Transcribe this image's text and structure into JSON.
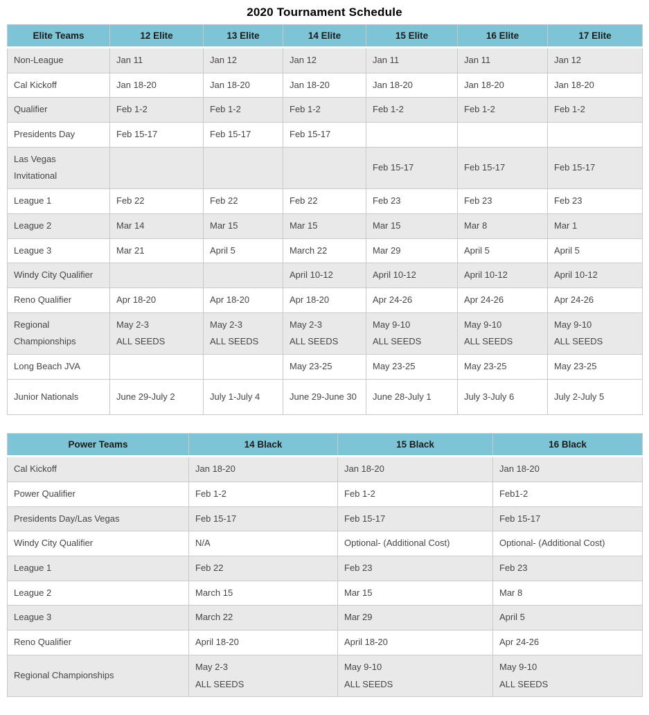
{
  "title": "2020 Tournament Schedule",
  "colors": {
    "header_bg": "#7dc5d6",
    "row_shaded": "#e9e9e9",
    "row_plain": "#ffffff",
    "border": "#c9c9c9",
    "text": "#454545",
    "header_text": "#1b1b1b"
  },
  "tables": [
    {
      "id": "elite",
      "headers": [
        "Elite Teams",
        "12 Elite",
        "13 Elite",
        "14 Elite",
        "15 Elite",
        "16 Elite",
        "17 Elite"
      ],
      "rows": [
        {
          "label": "Non-League",
          "shaded": true,
          "cells": [
            "Jan 11",
            "Jan 12",
            "Jan 12",
            "Jan 11",
            "Jan 11",
            "Jan 12"
          ]
        },
        {
          "label": "Cal Kickoff",
          "shaded": false,
          "cells": [
            "Jan 18-20",
            "Jan 18-20",
            "Jan 18-20",
            "Jan 18-20",
            "Jan 18-20",
            "Jan 18-20"
          ]
        },
        {
          "label": "Qualifier",
          "shaded": true,
          "cells": [
            "Feb 1-2",
            "Feb 1-2",
            "Feb 1-2",
            "Feb 1-2",
            "Feb 1-2",
            "Feb 1-2"
          ]
        },
        {
          "label": "Presidents Day",
          "shaded": false,
          "cells": [
            "Feb 15-17",
            "Feb 15-17",
            "Feb 15-17",
            "",
            "",
            ""
          ]
        },
        {
          "label": "Las Vegas\nInvitational",
          "shaded": true,
          "cells": [
            "",
            "",
            "",
            "Feb 15-17",
            "Feb 15-17",
            "Feb 15-17"
          ]
        },
        {
          "label": "League 1",
          "shaded": false,
          "cells": [
            "Feb 22",
            "Feb 22",
            "Feb 22",
            "Feb 23",
            "Feb 23",
            "Feb 23"
          ]
        },
        {
          "label": "League 2",
          "shaded": true,
          "cells": [
            "Mar 14",
            "Mar 15",
            "Mar 15",
            "Mar 15",
            "Mar 8",
            "Mar 1"
          ]
        },
        {
          "label": "League 3",
          "shaded": false,
          "cells": [
            "Mar 21",
            "April 5",
            "March 22",
            "Mar 29",
            "April 5",
            "April 5"
          ]
        },
        {
          "label": "Windy City Qualifier",
          "shaded": true,
          "cells": [
            "",
            "",
            "April 10-12",
            "April 10-12",
            "April 10-12",
            "April 10-12"
          ]
        },
        {
          "label": "Reno Qualifier",
          "shaded": false,
          "cells": [
            "Apr 18-20",
            "Apr 18-20",
            "Apr 18-20",
            "Apr 24-26",
            "Apr 24-26",
            "Apr 24-26"
          ]
        },
        {
          "label": "Regional\nChampionships",
          "shaded": true,
          "cells": [
            "May 2-3\nALL SEEDS",
            "May 2-3\nALL SEEDS",
            "May 2-3\nALL SEEDS",
            "May 9-10\nALL SEEDS",
            "May 9-10\nALL SEEDS",
            "May 9-10\nALL SEEDS"
          ]
        },
        {
          "label": "Long Beach JVA",
          "shaded": false,
          "cells": [
            "",
            "",
            "May 23-25",
            "May 23-25",
            "May 23-25",
            "May 23-25"
          ]
        },
        {
          "label": "Junior Nationals",
          "shaded": false,
          "cells": [
            "June 29-July 2",
            "July 1-July 4",
            "June 29-June 30",
            "June 28-July 1",
            "July 3-July 6",
            "July 2-July 5"
          ]
        }
      ]
    },
    {
      "id": "power",
      "headers": [
        "Power Teams",
        "14 Black",
        "15 Black",
        "16 Black"
      ],
      "rows": [
        {
          "label": "Cal Kickoff",
          "shaded": true,
          "cells": [
            "Jan 18-20",
            "Jan 18-20",
            "Jan 18-20"
          ]
        },
        {
          "label": "Power Qualifier",
          "shaded": false,
          "cells": [
            "Feb 1-2",
            "Feb 1-2",
            "Feb1-2"
          ]
        },
        {
          "label": "Presidents Day/Las Vegas",
          "shaded": true,
          "cells": [
            "Feb 15-17",
            "Feb 15-17",
            "Feb 15-17"
          ]
        },
        {
          "label": "Windy City Qualifier",
          "shaded": false,
          "cells": [
            "N/A",
            "Optional- (Additional Cost)",
            "Optional- (Additional Cost)"
          ]
        },
        {
          "label": "League 1",
          "shaded": true,
          "cells": [
            "Feb 22",
            "Feb 23",
            "Feb 23"
          ]
        },
        {
          "label": "League 2",
          "shaded": false,
          "cells": [
            "March 15",
            "Mar 15",
            "Mar 8"
          ]
        },
        {
          "label": "League 3",
          "shaded": true,
          "cells": [
            "March 22",
            "Mar 29",
            "April 5"
          ]
        },
        {
          "label": "Reno Qualifier",
          "shaded": false,
          "cells": [
            "April 18-20",
            "April 18-20",
            "Apr 24-26"
          ]
        },
        {
          "label": "Regional Championships",
          "shaded": true,
          "cells": [
            "May 2-3\nALL SEEDS",
            "May 9-10\nALL SEEDS",
            "May 9-10\nALL SEEDS"
          ]
        }
      ]
    }
  ]
}
